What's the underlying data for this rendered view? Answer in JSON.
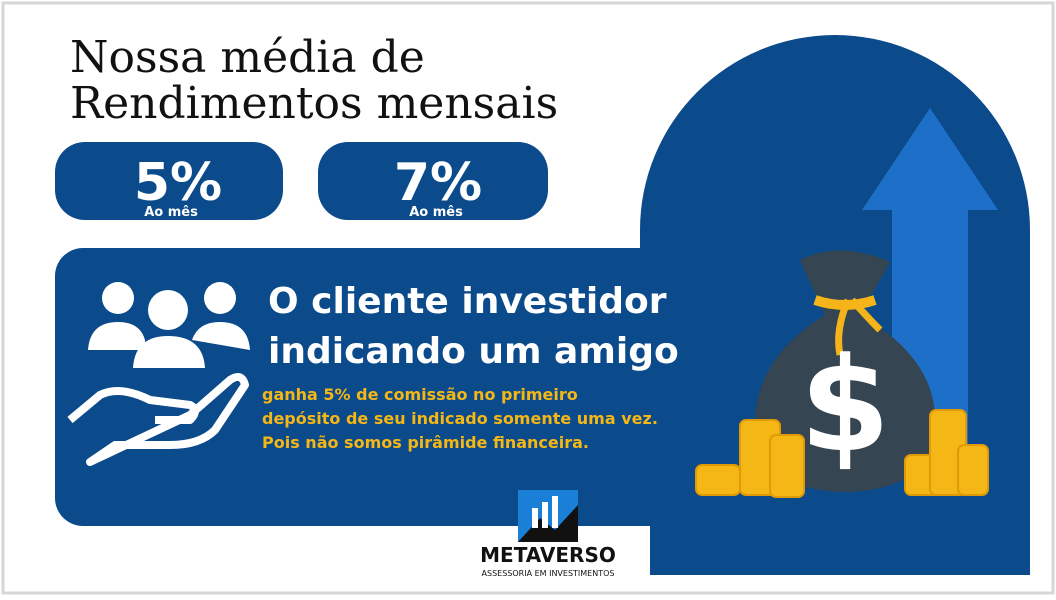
{
  "header": {
    "title_lines": [
      "Nossa média de",
      "Rendimentos mensais"
    ]
  },
  "rates": [
    {
      "value": "5%",
      "label": "Ao mês"
    },
    {
      "value": "7%",
      "label": "Ao mês"
    }
  ],
  "referral": {
    "heading_lines": [
      "O cliente investidor",
      "indicando um amigo"
    ],
    "body_lines": [
      "ganha 5% de comissão no primeiro",
      "depósito de seu indicado somente uma vez.",
      "Pois não somos pirâmide financeira."
    ]
  },
  "logo": {
    "name": "METAVERSO",
    "tagline": "ASSESSORIA EM INVESTIMENTOS"
  }
}
